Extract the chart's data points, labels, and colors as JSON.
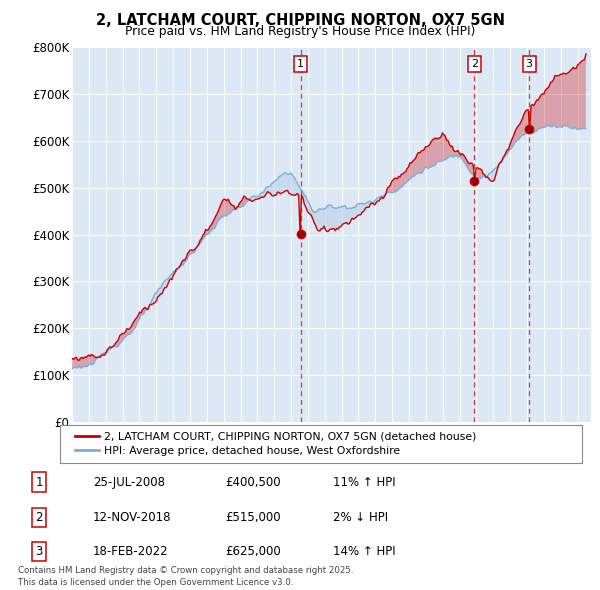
{
  "title": "2, LATCHAM COURT, CHIPPING NORTON, OX7 5GN",
  "subtitle": "Price paid vs. HM Land Registry's House Price Index (HPI)",
  "ylim": [
    0,
    800000
  ],
  "yticks": [
    0,
    100000,
    200000,
    300000,
    400000,
    500000,
    600000,
    700000,
    800000
  ],
  "ytick_labels": [
    "£0",
    "£100K",
    "£200K",
    "£300K",
    "£400K",
    "£500K",
    "£600K",
    "£700K",
    "£800K"
  ],
  "background_color": "#dce8f5",
  "red_color": "#cc0000",
  "blue_color": "#7bafd4",
  "fill_red": "#cc0000",
  "fill_blue": "#b8d0e8",
  "legend_label_red": "2, LATCHAM COURT, CHIPPING NORTON, OX7 5GN (detached house)",
  "legend_label_blue": "HPI: Average price, detached house, West Oxfordshire",
  "sale1_date": "25-JUL-2008",
  "sale1_price": "£400,500",
  "sale1_hpi": "11% ↑ HPI",
  "sale1_year": 2008.57,
  "sale1_value": 400500,
  "sale2_date": "12-NOV-2018",
  "sale2_price": "£515,000",
  "sale2_hpi": "2% ↓ HPI",
  "sale2_year": 2018.87,
  "sale2_value": 515000,
  "sale3_date": "18-FEB-2022",
  "sale3_price": "£625,000",
  "sale3_hpi": "14% ↑ HPI",
  "sale3_year": 2022.13,
  "sale3_value": 625000,
  "xmin": 1995,
  "xmax": 2025.8,
  "footer": "Contains HM Land Registry data © Crown copyright and database right 2025.\nThis data is licensed under the Open Government Licence v3.0."
}
